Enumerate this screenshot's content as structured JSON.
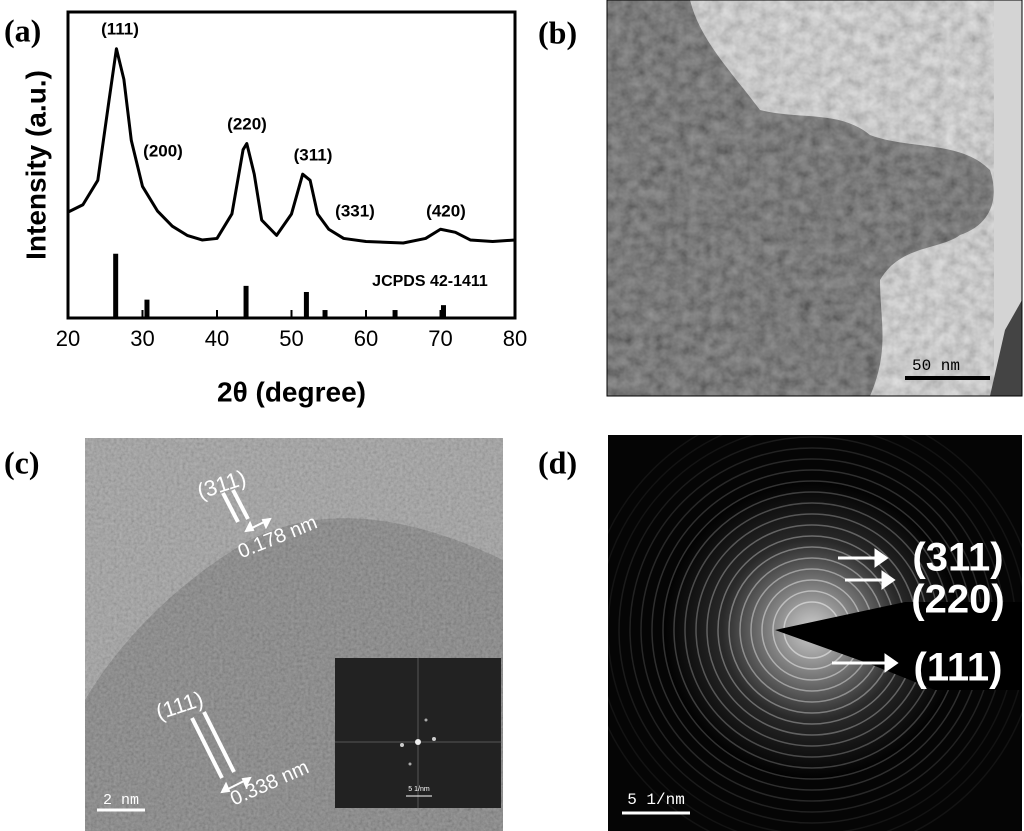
{
  "chart_data": {
    "type": "line",
    "panel_label": "(a)",
    "x_label": "2θ (degree)",
    "y_label": "Intensity (a.u.)",
    "x": [
      20,
      22,
      24,
      25.5,
      26.5,
      27.5,
      28.5,
      30,
      32,
      34,
      36,
      38,
      40,
      42,
      43.5,
      44,
      45,
      46,
      48,
      50,
      51.5,
      52.5,
      53.5,
      55,
      57,
      60,
      65,
      68,
      70,
      72,
      74,
      77,
      80
    ],
    "series": [
      {
        "color": "#000000",
        "values": [
          34.6,
          37,
          45,
          71,
          88,
          78,
          58,
          43,
          35,
          30,
          27,
          25.5,
          26,
          34,
          55,
          57,
          47,
          32,
          27,
          34,
          47,
          45,
          34,
          29,
          26,
          25,
          24.5,
          26,
          29,
          28,
          25.5,
          25,
          25.5
        ]
      }
    ],
    "annotations": [
      "(111)",
      "(200)",
      "(220)",
      "(311)",
      "(331)",
      "(420)"
    ],
    "reference": {
      "label": "JCPDS 42-1411",
      "x": [
        26.4,
        30.6,
        43.9,
        52.0,
        54.5,
        63.9,
        70.4
      ],
      "values": [
        21,
        6,
        10.5,
        8.5,
        2.6,
        2.6,
        4.2
      ]
    },
    "xlim": [
      20,
      80
    ],
    "xticks": [
      20,
      30,
      40,
      50,
      60,
      70,
      80
    ],
    "ylim": [
      0,
      100
    ]
  },
  "panel_b": {
    "label": "(b)",
    "scale_bar": "50 nm"
  },
  "panel_c": {
    "label": "(c)",
    "plane_1": "(311)",
    "spacing_1": "0.178 nm",
    "plane_2": "(111)",
    "spacing_2": "0.338 nm",
    "scale_bar": "2 nm",
    "inset_scale_bar": "5 1/nm"
  },
  "panel_d": {
    "label": "(d)",
    "rings": [
      "(311)",
      "(220)",
      "(111)"
    ],
    "scale_bar": "5 1/nm"
  }
}
